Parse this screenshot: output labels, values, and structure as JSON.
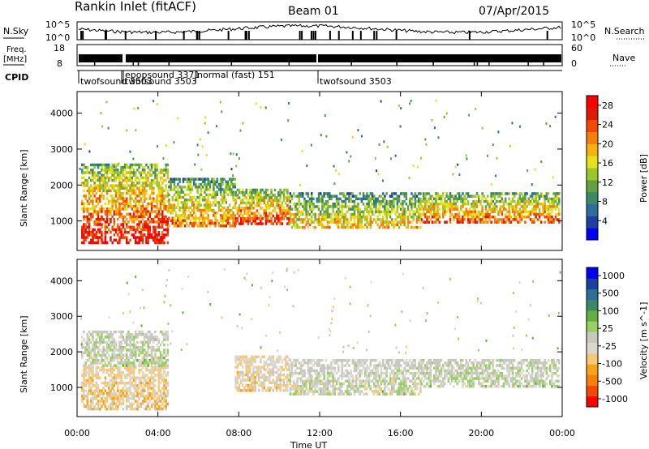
{
  "header": {
    "station": "Rankin Inlet (fitACF)",
    "beam": "Beam 01",
    "date": "07/Apr/2015"
  },
  "strips": {
    "nsky_label": "N.Sky",
    "nsky_ticks": [
      "10^5",
      "10^0"
    ],
    "nsearch_label": "N.Search",
    "nsearch_ticks": [
      "10^5",
      "10^0"
    ],
    "freq_label_line1": "Freq.",
    "freq_label_line2": "[MHz]",
    "freq_ticks": [
      "18",
      "8"
    ],
    "nave_label": "Nave",
    "nave_ticks": [
      "60",
      "0"
    ],
    "cpid_label": "CPID",
    "cpid_entries": [
      {
        "text": "twofsound 3503",
        "t": 0.4
      },
      {
        "text": "twofsound 3503",
        "t": 2.55
      },
      {
        "text": "epopsound 3371",
        "t": 2.55
      },
      {
        "text": "normal (fast) 151",
        "t": 5.9
      },
      {
        "text": "twofsound 3503",
        "t": 12.05
      }
    ]
  },
  "axes": {
    "ylabel": "Slant Range [km]",
    "yticks": [
      "1000",
      "2000",
      "3000",
      "4000"
    ],
    "xticks": [
      "00:00",
      "04:00",
      "08:00",
      "12:00",
      "16:00",
      "20:00",
      "00:00"
    ],
    "xlabel": "Time UT"
  },
  "chart_data": [
    {
      "type": "heatmap",
      "title": "",
      "quantity": "Power",
      "colorbar_label": "Power [dB]",
      "colorbar_ticks": [
        "4",
        "8",
        "12",
        "16",
        "20",
        "24",
        "28"
      ],
      "colorbar_range": [
        0,
        30
      ],
      "x_range": [
        0,
        24
      ],
      "y_range": [
        180,
        4600
      ],
      "xlabel": "Time UT",
      "ylabel": "Slant Range [km]",
      "colors": [
        "#0000ff",
        "#1c3fa0",
        "#2e6f9a",
        "#3a8a66",
        "#62a040",
        "#9bc72a",
        "#e5e019",
        "#f6b30d",
        "#f57f0a",
        "#f24a06",
        "#e01a00",
        "#ff0000"
      ],
      "bands": [
        {
          "t0": 0.2,
          "t1": 4.5,
          "r0": 400,
          "r1": 2600,
          "level": 26
        },
        {
          "t0": 4.5,
          "t1": 7.8,
          "r0": 900,
          "r1": 2200,
          "level": 20
        },
        {
          "t0": 7.8,
          "t1": 10.5,
          "r0": 900,
          "r1": 1900,
          "level": 25
        },
        {
          "t0": 10.5,
          "t1": 17,
          "r0": 800,
          "r1": 1800,
          "level": 18
        },
        {
          "t0": 17,
          "t1": 23.8,
          "r0": 1000,
          "r1": 1800,
          "level": 22
        }
      ]
    },
    {
      "type": "heatmap",
      "title": "",
      "quantity": "Velocity",
      "colorbar_label": "Velocity [m s^-1]",
      "colorbar_ticks": [
        "1000",
        "500",
        "100",
        "25",
        "-25",
        "-100",
        "-500",
        "-1000"
      ],
      "colorbar_range": [
        -1000,
        1000
      ],
      "x_range": [
        0,
        24
      ],
      "y_range": [
        180,
        4600
      ],
      "xlabel": "Time UT",
      "ylabel": "Slant Range [km]",
      "colors": [
        "#ff0000",
        "#f24a06",
        "#f57f0a",
        "#f6a31a",
        "#f6c87a",
        "#d8d8d0",
        "#c8c8c0",
        "#9bd060",
        "#62b040",
        "#3a8a66",
        "#2e6f9a",
        "#1c3fa0",
        "#0000ff"
      ],
      "bands": [
        {
          "t0": 0.2,
          "t1": 4.5,
          "r0": 400,
          "r1": 1600,
          "level": -250
        },
        {
          "t0": 0.2,
          "t1": 4.5,
          "r0": 1600,
          "r1": 2600,
          "level": 0
        },
        {
          "t0": 7.8,
          "t1": 10.5,
          "r0": 900,
          "r1": 1900,
          "level": -200
        },
        {
          "t0": 10.5,
          "t1": 17,
          "r0": 800,
          "r1": 1800,
          "level": -40
        },
        {
          "t0": 17,
          "t1": 23.8,
          "r0": 1000,
          "r1": 1800,
          "level": 0
        }
      ]
    }
  ]
}
